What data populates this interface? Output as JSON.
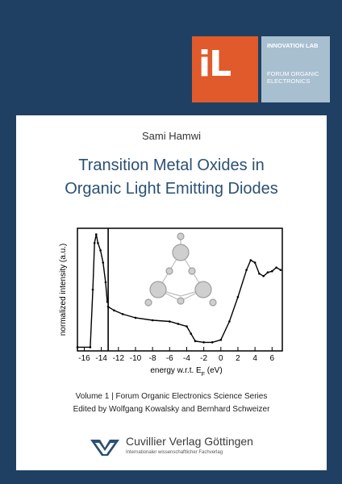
{
  "logo": {
    "letters": "iL",
    "line1": "INNOVATION LAB",
    "line2": "FORUM ORGANIC ELECTRONICS"
  },
  "author": "Sami Hamwi",
  "title_line1": "Transition Metal Oxides in",
  "title_line2": "Organic Light Emitting Diodes",
  "chart_data": {
    "type": "line",
    "xlabel": "energy w.r.t. E",
    "xlabel_sub": "F",
    "xlabel_unit": " (eV)",
    "ylabel": "normalized intensity (a.u.)",
    "xlim": [
      -16.8,
      7.2
    ],
    "x_ticks": [
      -16,
      -14,
      -12,
      -10,
      -8,
      -6,
      -4,
      -2,
      0,
      2,
      4,
      6
    ],
    "x_tick_labels": [
      "-16",
      "-14",
      "-12",
      "-10",
      "-8",
      "-6",
      "-4",
      "-2",
      "0",
      "2",
      "4",
      "6"
    ],
    "divider_x": -13.2,
    "series": [
      {
        "values_x": [
          -16.8,
          -15.3,
          -15.0,
          -14.8,
          -14.6,
          -14.4,
          -14.1,
          -13.8,
          -13.5,
          -13.3
        ],
        "values_y": [
          0.03,
          0.03,
          0.5,
          0.88,
          0.95,
          0.88,
          0.82,
          0.72,
          0.56,
          0.4
        ]
      },
      {
        "values_x": [
          -13.2,
          -12.5,
          -11.5,
          -10.0,
          -8.0,
          -6.0,
          -5.0,
          -4.0,
          -3.5,
          -3.0,
          -2.0,
          -1.0,
          0.0,
          1.0,
          2.0,
          3.0,
          3.5,
          4.0,
          4.5,
          5.0,
          5.5,
          6.0,
          6.5,
          7.0
        ],
        "values_y": [
          0.36,
          0.33,
          0.3,
          0.27,
          0.25,
          0.24,
          0.22,
          0.2,
          0.14,
          0.08,
          0.07,
          0.07,
          0.09,
          0.24,
          0.44,
          0.66,
          0.74,
          0.72,
          0.63,
          0.61,
          0.64,
          0.65,
          0.68,
          0.66
        ]
      }
    ]
  },
  "series_line1": "Volume 1 | Forum Organic Electronics Science Series",
  "series_line2": "Edited by Wolfgang Kowalsky and Bernhard Schweizer",
  "publisher_name": "Cuvillier Verlag Göttingen",
  "publisher_tagline": "Internationaler wissenschaftlicher Fachverlag"
}
